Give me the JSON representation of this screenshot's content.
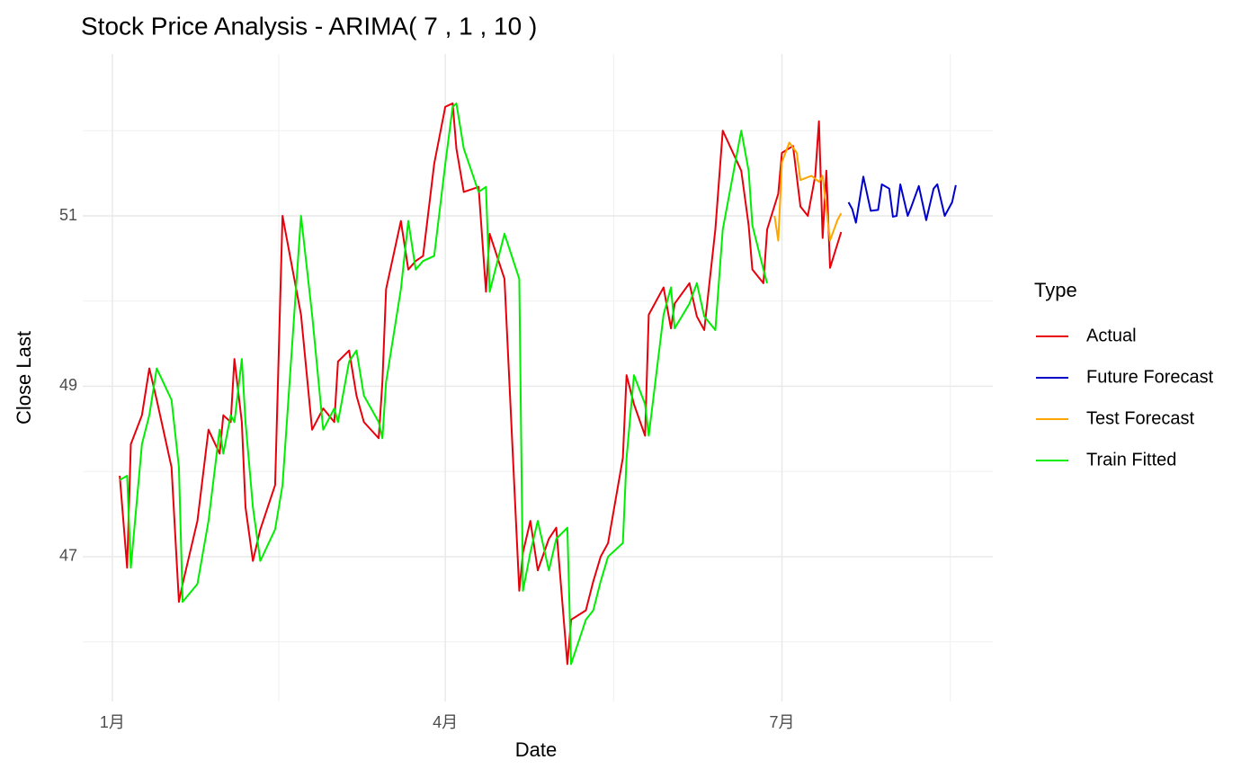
{
  "chart_data": {
    "type": "line",
    "title": "Stock Price Analysis - ARIMA( 7 , 1 , 10 )",
    "x_label": "Date",
    "y_label": "Close Last",
    "legend_title": "Type",
    "legend": "right",
    "grid": true,
    "xlim": [
      -8,
      238
    ],
    "xticks": [
      {
        "value": 0,
        "label": "1月"
      },
      {
        "value": 90,
        "label": "4月"
      },
      {
        "value": 181,
        "label": "7月"
      }
    ],
    "ylim": [
      45.3,
      52.9
    ],
    "yticks": [
      47,
      49,
      51
    ],
    "series": [
      {
        "name": "Actual",
        "color": "#e8000b",
        "x": [
          2,
          4,
          5,
          8,
          10,
          12,
          16,
          18,
          19,
          23,
          26,
          29,
          30,
          32,
          33,
          35,
          36,
          38,
          40,
          44,
          46,
          51,
          54,
          57,
          60,
          61,
          64,
          66,
          68,
          72,
          73,
          74,
          78,
          80,
          82,
          84,
          87,
          90,
          92,
          93,
          95,
          99,
          101,
          102,
          106,
          110,
          111,
          113,
          115,
          118,
          120,
          123,
          124,
          128,
          130,
          132,
          134,
          138,
          139,
          141,
          144,
          145,
          149,
          151,
          152,
          156,
          158,
          160,
          163,
          165,
          170,
          172,
          173,
          176,
          177,
          180,
          181,
          184,
          186,
          188,
          190,
          191,
          192,
          193,
          194,
          197
        ],
        "values": [
          47.95,
          46.87,
          48.32,
          48.66,
          49.21,
          48.84,
          48.05,
          46.47,
          46.68,
          47.42,
          48.49,
          48.21,
          48.66,
          48.58,
          49.32,
          48.58,
          47.58,
          46.95,
          47.32,
          47.84,
          51.0,
          49.84,
          48.49,
          48.74,
          48.58,
          49.29,
          49.42,
          48.89,
          48.58,
          48.39,
          49.05,
          50.14,
          50.94,
          50.37,
          50.47,
          50.53,
          51.61,
          52.28,
          52.32,
          51.79,
          51.28,
          51.34,
          50.11,
          50.79,
          50.26,
          46.6,
          47.05,
          47.42,
          46.84,
          47.21,
          47.34,
          45.74,
          46.26,
          46.37,
          46.71,
          47.0,
          47.16,
          48.16,
          49.13,
          48.79,
          48.42,
          49.84,
          50.16,
          49.68,
          49.97,
          50.21,
          49.82,
          49.66,
          50.84,
          52.0,
          51.53,
          50.89,
          50.37,
          50.21,
          50.84,
          51.26,
          51.74,
          51.82,
          51.11,
          51.0,
          51.47,
          52.11,
          50.74,
          51.53,
          50.39,
          50.81
        ]
      },
      {
        "name": "Future Forecast",
        "color": "#0000cd",
        "x": [
          199,
          200,
          201,
          203,
          205,
          207,
          208,
          210,
          211,
          212,
          213,
          215,
          216,
          218,
          220,
          222,
          223,
          225,
          227,
          228
        ],
        "values": [
          51.16,
          51.08,
          50.92,
          51.46,
          51.06,
          51.07,
          51.37,
          51.32,
          50.99,
          51.0,
          51.37,
          51.0,
          51.11,
          51.35,
          50.95,
          51.32,
          51.37,
          51.0,
          51.16,
          51.36
        ]
      },
      {
        "name": "Test Forecast",
        "color": "#ffa500",
        "x": [
          179,
          180,
          181,
          183,
          185,
          186,
          189,
          191,
          192,
          194,
          196,
          197
        ],
        "values": [
          51.0,
          50.71,
          51.63,
          51.86,
          51.74,
          51.42,
          51.47,
          51.4,
          51.47,
          50.71,
          50.95,
          51.03
        ]
      },
      {
        "name": "Train Fitted",
        "color": "#00ee00",
        "x": [
          2,
          4,
          5,
          8,
          10,
          12,
          16,
          18,
          19,
          23,
          26,
          29,
          30,
          32,
          33,
          35,
          36,
          38,
          40,
          44,
          46,
          51,
          54,
          57,
          60,
          61,
          64,
          66,
          68,
          72,
          73,
          74,
          78,
          80,
          82,
          84,
          87,
          90,
          92,
          93,
          95,
          99,
          101,
          102,
          106,
          110,
          111,
          113,
          115,
          118,
          120,
          123,
          124,
          128,
          130,
          132,
          134,
          138,
          139,
          141,
          144,
          145,
          149,
          151,
          152,
          156,
          158,
          160,
          163,
          165,
          170,
          172,
          173,
          176,
          177
        ],
        "values": [
          47.9,
          47.95,
          46.87,
          48.32,
          48.66,
          49.21,
          48.84,
          48.05,
          46.47,
          46.68,
          47.42,
          48.49,
          48.21,
          48.66,
          48.58,
          49.32,
          48.58,
          47.58,
          46.95,
          47.32,
          47.84,
          51.0,
          49.84,
          48.49,
          48.74,
          48.58,
          49.29,
          49.42,
          48.89,
          48.58,
          48.39,
          49.05,
          50.14,
          50.94,
          50.37,
          50.47,
          50.53,
          51.61,
          52.28,
          52.32,
          51.79,
          51.28,
          51.34,
          50.11,
          50.79,
          50.26,
          46.6,
          47.05,
          47.42,
          46.84,
          47.21,
          47.34,
          45.74,
          46.26,
          46.37,
          46.71,
          47.0,
          47.16,
          48.16,
          49.13,
          48.79,
          48.42,
          49.84,
          50.16,
          49.68,
          49.97,
          50.21,
          49.82,
          49.66,
          50.84,
          52.0,
          51.53,
          50.89,
          50.37,
          50.21
        ]
      }
    ]
  }
}
